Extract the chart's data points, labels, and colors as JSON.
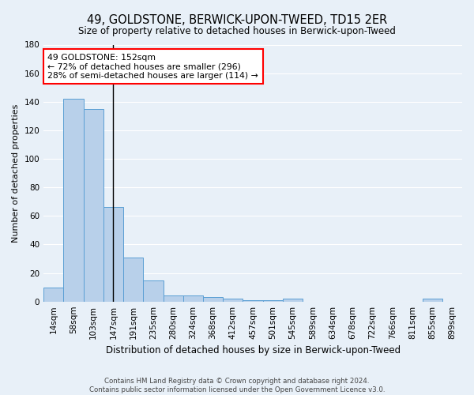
{
  "title": "49, GOLDSTONE, BERWICK-UPON-TWEED, TD15 2ER",
  "subtitle": "Size of property relative to detached houses in Berwick-upon-Tweed",
  "xlabel": "Distribution of detached houses by size in Berwick-upon-Tweed",
  "ylabel": "Number of detached properties",
  "footer_line1": "Contains HM Land Registry data © Crown copyright and database right 2024.",
  "footer_line2": "Contains public sector information licensed under the Open Government Licence v3.0.",
  "categories": [
    "14sqm",
    "58sqm",
    "103sqm",
    "147sqm",
    "191sqm",
    "235sqm",
    "280sqm",
    "324sqm",
    "368sqm",
    "412sqm",
    "457sqm",
    "501sqm",
    "545sqm",
    "589sqm",
    "634sqm",
    "678sqm",
    "722sqm",
    "766sqm",
    "811sqm",
    "855sqm",
    "899sqm"
  ],
  "values": [
    10,
    142,
    135,
    66,
    31,
    15,
    4,
    4,
    3,
    2,
    1,
    1,
    2,
    0,
    0,
    0,
    0,
    0,
    0,
    2,
    0
  ],
  "bar_color": "#b8d0ea",
  "bar_edge_color": "#5a9fd4",
  "background_color": "#e8f0f8",
  "ylim": [
    0,
    180
  ],
  "yticks": [
    0,
    20,
    40,
    60,
    80,
    100,
    120,
    140,
    160,
    180
  ],
  "property_line_x": 2.97,
  "property_line_label": "49 GOLDSTONE: 152sqm",
  "annotation_line1": "← 72% of detached houses are smaller (296)",
  "annotation_line2": "28% of semi-detached houses are larger (114) →",
  "line_color": "#000000",
  "grid_color": "#ffffff"
}
